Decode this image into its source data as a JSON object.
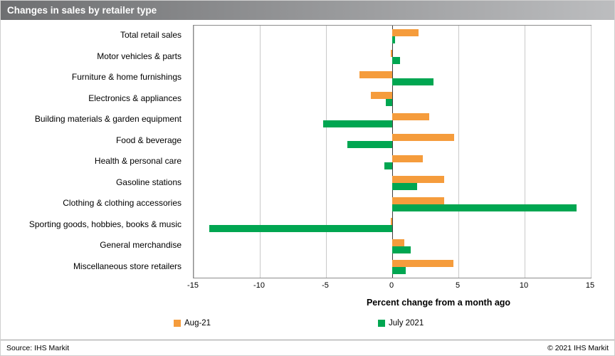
{
  "title": "Changes in sales by retailer type",
  "chart_data": {
    "type": "bar",
    "orientation": "horizontal",
    "title": "Changes in sales by retailer type",
    "xlabel": "Percent change from a month ago",
    "xlim": [
      -15,
      15
    ],
    "xticks": [
      -15,
      -10,
      -5,
      0,
      5,
      10,
      15
    ],
    "grid": true,
    "legend_position": "bottom",
    "categories": [
      "Total retail sales",
      "Motor vehicles & parts",
      "Furniture & home furnishings",
      "Electronics & appliances",
      "Building materials & garden equipment",
      "Food & beverage",
      "Health & personal care",
      "Gasoline stations",
      "Clothing & clothing accessories",
      "Sporting goods, hobbies, books & music",
      "General merchandise",
      "Miscellaneous store retailers"
    ],
    "series": [
      {
        "name": "Aug-21",
        "color": "#F59C3C",
        "values": [
          2.0,
          -0.1,
          -2.5,
          -1.6,
          2.8,
          4.7,
          2.3,
          3.9,
          3.9,
          -0.1,
          0.9,
          4.6
        ]
      },
      {
        "name": "July 2021",
        "color": "#00A651",
        "values": [
          0.2,
          0.6,
          3.1,
          -0.5,
          -5.2,
          -3.4,
          -0.6,
          1.9,
          13.9,
          -13.8,
          1.4,
          1.0
        ]
      }
    ]
  },
  "footer": {
    "source": "Source: IHS Markit",
    "copyright": "© 2021  IHS Markit"
  }
}
